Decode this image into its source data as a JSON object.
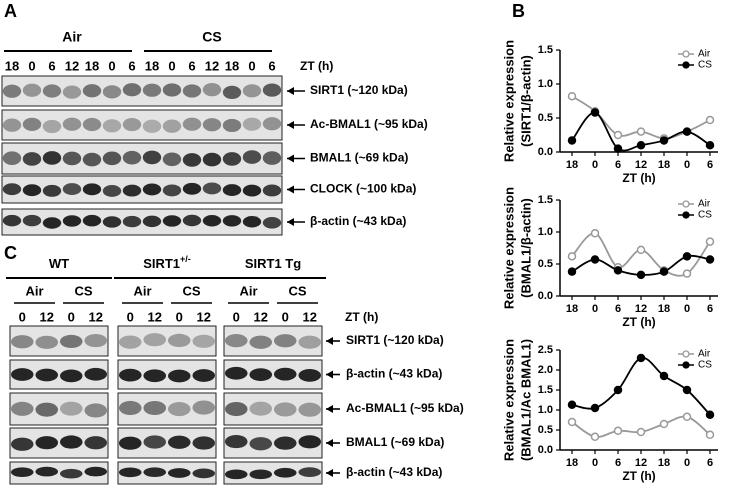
{
  "panel_a": {
    "letter": "A",
    "groups": [
      "Air",
      "CS"
    ],
    "lanes": [
      "18",
      "0",
      "6",
      "12",
      "18",
      "0",
      "6",
      "18",
      "0",
      "6",
      "12",
      "18",
      "0",
      "6"
    ],
    "zt_label": "ZT (h)",
    "blots": [
      "SIRT1 (~120  kDa)",
      "Ac-BMAL1 (~95 kDa)",
      "BMAL1 (~69 kDa)",
      "CLOCK (~100 kDa)",
      "β-actin (~43 kDa)"
    ]
  },
  "panel_b": {
    "letter": "B"
  },
  "panel_c": {
    "letter": "C",
    "strains": [
      {
        "name": "WT"
      },
      {
        "name": "SIRT1",
        "sup": "+/-"
      },
      {
        "name": "SIRT1 Tg"
      }
    ],
    "groups": [
      "Air",
      "CS"
    ],
    "lanes": [
      "0",
      "12",
      "0",
      "12"
    ],
    "zt_label": "ZT (h)",
    "blots": [
      "SIRT1 (~120 kDa)",
      "β-actin (~43 kDa)",
      "Ac-BMAL1 (~95 kDa)",
      "BMAL1 (~69 kDa)",
      "β-actin (~43 kDa)"
    ]
  },
  "chart_data": [
    {
      "type": "line",
      "y_label": [
        "Relative expression",
        "(SIRT1/β-actin)"
      ],
      "x_label": "ZT (h)",
      "categories": [
        "18",
        "0",
        "6",
        "12",
        "18",
        "0",
        "6"
      ],
      "ylim": [
        0,
        1.5
      ],
      "yticks": [
        {
          "value": 0,
          "label": "0.0"
        },
        {
          "value": 0.5,
          "label": "0.5"
        },
        {
          "value": 1,
          "label": "1.0"
        },
        {
          "value": 1.5,
          "label": "1.5"
        }
      ],
      "legend": "top-right",
      "series": [
        {
          "name": "Air",
          "color": "#999999",
          "marker": "open",
          "values": [
            0.82,
            0.6,
            0.25,
            0.3,
            0.2,
            0.3,
            0.47
          ]
        },
        {
          "name": "CS",
          "color": "#000000",
          "marker": "filled",
          "values": [
            0.17,
            0.58,
            0.05,
            0.1,
            0.17,
            0.3,
            0.1
          ]
        }
      ]
    },
    {
      "type": "line",
      "y_label": [
        "Relative expression",
        "(BMAL1/β-actin)"
      ],
      "x_label": "ZT (h)",
      "categories": [
        "18",
        "0",
        "6",
        "12",
        "18",
        "0",
        "6"
      ],
      "ylim": [
        0,
        1.5
      ],
      "yticks": [
        {
          "value": 0,
          "label": "0.0"
        },
        {
          "value": 0.5,
          "label": "0.5"
        },
        {
          "value": 1,
          "label": "1.0"
        },
        {
          "value": 1.5,
          "label": "1.5"
        }
      ],
      "legend": "top-right",
      "series": [
        {
          "name": "Air",
          "color": "#999999",
          "marker": "open",
          "values": [
            0.62,
            0.98,
            0.45,
            0.72,
            0.4,
            0.35,
            0.85
          ]
        },
        {
          "name": "CS",
          "color": "#000000",
          "marker": "filled",
          "values": [
            0.38,
            0.57,
            0.4,
            0.33,
            0.38,
            0.62,
            0.57
          ]
        }
      ]
    },
    {
      "type": "line",
      "y_label": [
        "Relative expression",
        "(BMAL1/Ac BMAL1)"
      ],
      "x_label": "ZT (h)",
      "categories": [
        "18",
        "0",
        "6",
        "12",
        "18",
        "0",
        "6"
      ],
      "ylim": [
        0,
        2.5
      ],
      "yticks": [
        {
          "value": 0,
          "label": "0.0"
        },
        {
          "value": 0.5,
          "label": "0.5"
        },
        {
          "value": 1,
          "label": "1.0"
        },
        {
          "value": 1.5,
          "label": "1.5"
        },
        {
          "value": 2,
          "label": "2.0"
        },
        {
          "value": 2.5,
          "label": "2.5"
        }
      ],
      "legend": "top-right",
      "series": [
        {
          "name": "Air",
          "color": "#999999",
          "marker": "open",
          "values": [
            0.7,
            0.33,
            0.48,
            0.45,
            0.65,
            0.83,
            0.38
          ]
        },
        {
          "name": "CS",
          "color": "#000000",
          "marker": "filled",
          "values": [
            1.13,
            1.05,
            1.5,
            2.3,
            1.85,
            1.5,
            0.88
          ]
        }
      ]
    }
  ]
}
